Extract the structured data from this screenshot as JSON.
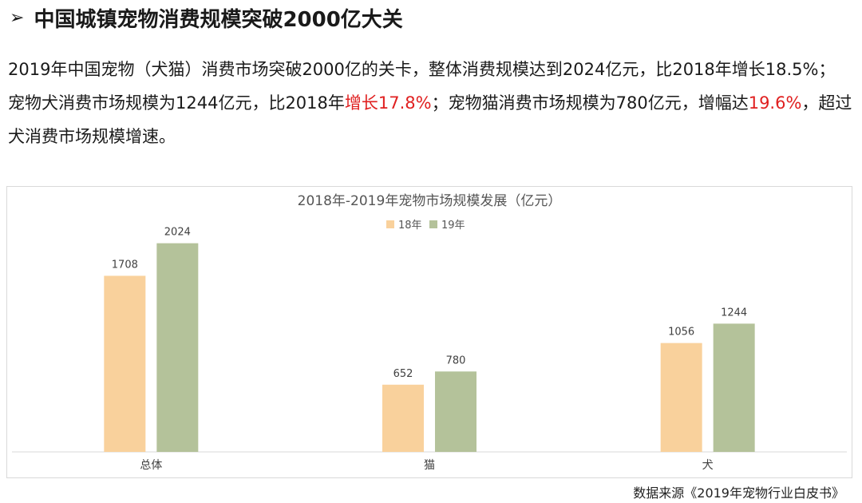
{
  "heading": {
    "arrow": "➢",
    "title": "中国城镇宠物消费规模突破2000亿大关"
  },
  "paragraphs": {
    "p1": "2019年中国宠物（犬猫）消费市场突破2000亿的关卡，整体消费规模达到2024亿元，比2018年增长18.5%；",
    "p2_a": "宠物犬消费市场规模为1244亿元，比2018年",
    "p2_b": "增长17.8%",
    "p2_c": "；宠物猫消费市场规模为780亿元，增幅达",
    "p2_d": "19.6%",
    "p2_e": "，超过犬消费市场规模增速。"
  },
  "colors": {
    "series_18": "#f9d19c",
    "series_19": "#b4c29a",
    "highlight_red": "#e02020"
  },
  "chart_data": {
    "type": "bar",
    "title": "2018年-2019年宠物市场规模发展（亿元）",
    "categories": [
      "总体",
      "猫",
      "犬"
    ],
    "series": [
      {
        "name": "18年",
        "values": [
          1708,
          652,
          1056
        ]
      },
      {
        "name": "19年",
        "values": [
          2024,
          780,
          1244
        ]
      }
    ],
    "ylim": [
      0,
      2300
    ],
    "grid": false,
    "legend": "top-center",
    "data_labels": true
  },
  "source": "数据来源《2019年宠物行业白皮书》"
}
